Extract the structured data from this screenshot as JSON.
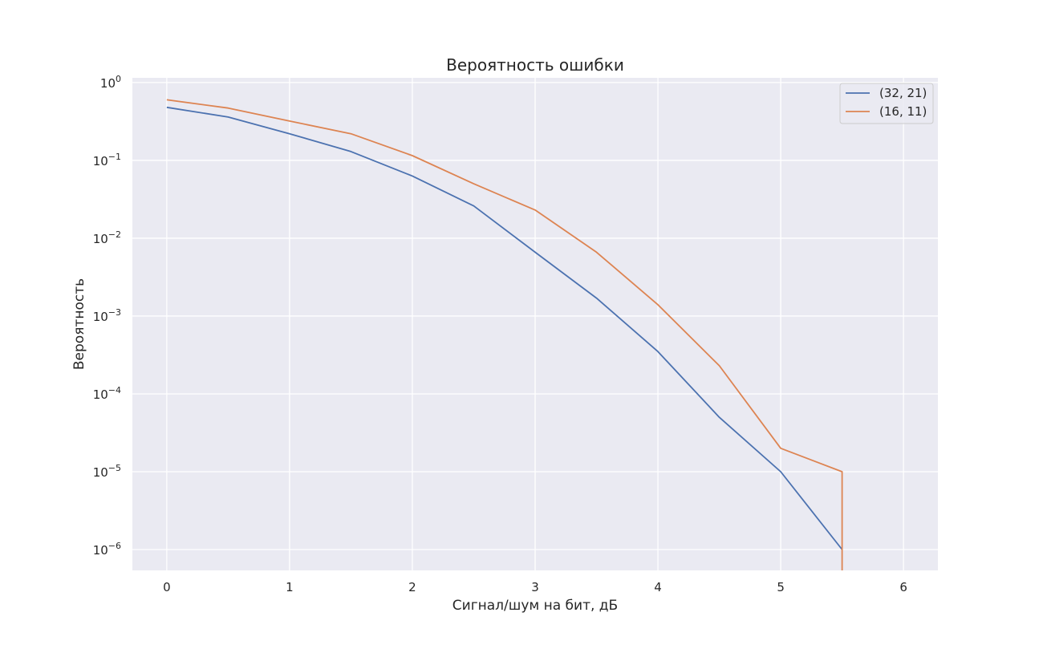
{
  "chart_data": {
    "type": "line",
    "title": "Вероятность ошибки",
    "xlabel": "Сигнал/шум на бит, дБ",
    "ylabel": "Вероятность",
    "yscale": "log",
    "xlim": [
      -0.28,
      6.28
    ],
    "ylim": [
      5.4e-07,
      1.15
    ],
    "grid": true,
    "legend_position": "top-right",
    "x_ticks": [
      0,
      1,
      2,
      3,
      4,
      5,
      6
    ],
    "y_ticks": [
      {
        "value": 1.0,
        "base": "10",
        "exp": "0"
      },
      {
        "value": 0.1,
        "base": "10",
        "exp": "−1"
      },
      {
        "value": 0.01,
        "base": "10",
        "exp": "−2"
      },
      {
        "value": 0.001,
        "base": "10",
        "exp": "−3"
      },
      {
        "value": 0.0001,
        "base": "10",
        "exp": "−4"
      },
      {
        "value": 1e-05,
        "base": "10",
        "exp": "−5"
      },
      {
        "value": 1e-06,
        "base": "10",
        "exp": "−6"
      }
    ],
    "series": [
      {
        "name": "(32, 21)",
        "color": "#4c72b0",
        "x": [
          0,
          0.5,
          1,
          1.5,
          2,
          2.5,
          3,
          3.5,
          4,
          4.5,
          5,
          5.5
        ],
        "y": [
          0.48,
          0.36,
          0.22,
          0.13,
          0.063,
          0.026,
          0.0066,
          0.0017,
          0.00035,
          5e-05,
          1e-05,
          1e-06
        ]
      },
      {
        "name": "(16, 11)",
        "color": "#dd8452",
        "x": [
          0,
          0.5,
          1,
          1.5,
          2,
          2.5,
          3,
          3.5,
          4,
          4.5,
          5,
          5.5,
          5.5
        ],
        "y": [
          0.6,
          0.47,
          0.32,
          0.22,
          0.115,
          0.05,
          0.023,
          0.0066,
          0.0014,
          0.00023,
          2e-05,
          1e-05,
          0.0
        ]
      }
    ]
  }
}
